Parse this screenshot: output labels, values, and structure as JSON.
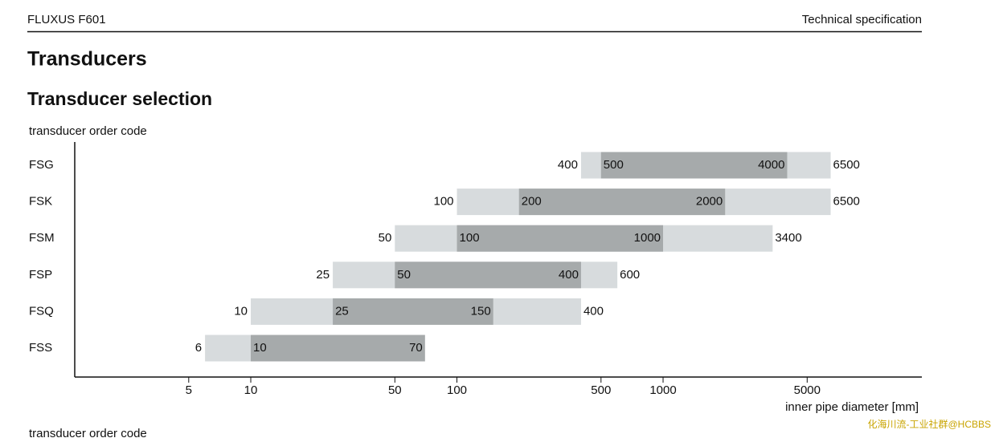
{
  "header": {
    "left": "FLUXUS F601",
    "right": "Technical specification"
  },
  "title": "Transducers",
  "subtitle": "Transducer selection",
  "footer": "transducer order code",
  "watermark": "化海川流-工业社群@HCBBS",
  "chart_data": {
    "type": "range-bar",
    "y_label": "transducer order code",
    "x_label": "inner pipe diameter [mm]",
    "categories": [
      "FSG",
      "FSK",
      "FSM",
      "FSP",
      "FSQ",
      "FSS"
    ],
    "series": [
      {
        "color": "#d7dbdd",
        "values": [
          [
            400,
            6500
          ],
          [
            100,
            6500
          ],
          [
            50,
            3400
          ],
          [
            25,
            600
          ],
          [
            10,
            400
          ],
          [
            6,
            null
          ]
        ]
      },
      {
        "color": "#a6aaab",
        "values": [
          [
            500,
            4000
          ],
          [
            200,
            2000
          ],
          [
            100,
            1000
          ],
          [
            50,
            400
          ],
          [
            25,
            150
          ],
          [
            10,
            70
          ]
        ]
      }
    ],
    "xscale": "log",
    "xlim": [
      1.4,
      18000
    ],
    "xticks": [
      5,
      10,
      50,
      100,
      500,
      1000,
      5000
    ]
  }
}
